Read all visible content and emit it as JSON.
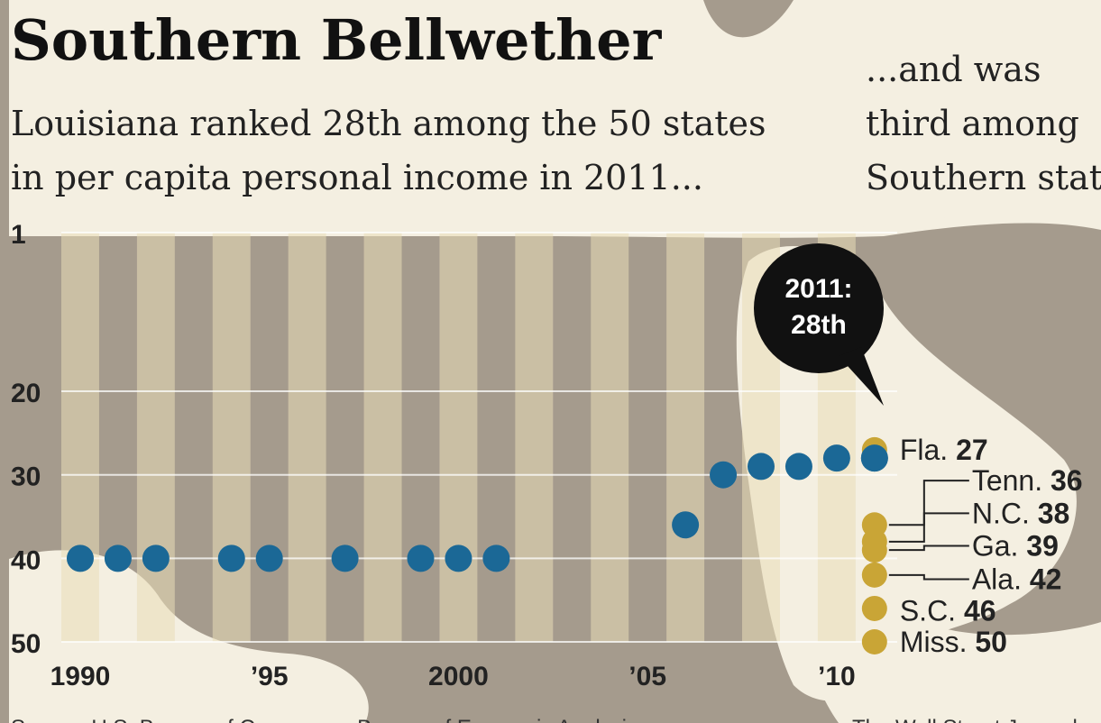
{
  "headline": "Southern Bellwether",
  "subhead_left": [
    "Louisiana ranked 28th among the 50 states",
    "in per capita personal income in 2011..."
  ],
  "subhead_right": [
    "...and was",
    "third among",
    "Southern state"
  ],
  "callout": [
    "2011:",
    "28th"
  ],
  "source_fragments": [
    "Source: U.S. Bureau of Commerce; Bureau of Economic Analysis",
    "The Wall Street Journal"
  ],
  "colors": {
    "paper": "#f4efe1",
    "stripe": "#e9dcb8",
    "louisiana": "#1b6896",
    "southern": "#c9a536",
    "callout": "#111111",
    "overlay": "#a59b8d"
  },
  "chart_data": {
    "type": "scatter",
    "title": "",
    "xlabel": "",
    "ylabel": "",
    "xlim": [
      1989.5,
      2011.6
    ],
    "ylim": [
      1,
      50
    ],
    "y_inverted": true,
    "grid": true,
    "x_ticks": [
      {
        "value": 1990,
        "label": "1990"
      },
      {
        "value": 1995,
        "label": "’95"
      },
      {
        "value": 2000,
        "label": "2000"
      },
      {
        "value": 2005,
        "label": "’05"
      },
      {
        "value": 2010,
        "label": "’10"
      }
    ],
    "y_ticks": [
      {
        "value": 1,
        "label": "1"
      },
      {
        "value": 20,
        "label": "20"
      },
      {
        "value": 30,
        "label": "30"
      },
      {
        "value": 40,
        "label": "40"
      },
      {
        "value": 50,
        "label": "50"
      }
    ],
    "series": [
      {
        "points": [
          {
            "x": 1990,
            "y": 40
          },
          {
            "x": 1991,
            "y": 40
          },
          {
            "x": 1992,
            "y": 40
          },
          {
            "x": 1994,
            "y": 40
          },
          {
            "x": 1995,
            "y": 40
          },
          {
            "x": 1997,
            "y": 40
          },
          {
            "x": 1999,
            "y": 40
          },
          {
            "x": 2000,
            "y": 40
          },
          {
            "x": 2001,
            "y": 40
          },
          {
            "x": 2006,
            "y": 36
          },
          {
            "x": 2007,
            "y": 30
          },
          {
            "x": 2008,
            "y": 29
          },
          {
            "x": 2009,
            "y": 29
          },
          {
            "x": 2010,
            "y": 28
          },
          {
            "x": 2011,
            "y": 28
          }
        ]
      },
      {
        "points": [
          {
            "x": 2011,
            "y": 27,
            "label": "Fla.",
            "value": "27"
          },
          {
            "x": 2011,
            "y": 36,
            "label": "Tenn.",
            "value": "36"
          },
          {
            "x": 2011,
            "y": 38,
            "label": "N.C.",
            "value": "38"
          },
          {
            "x": 2011,
            "y": 39,
            "label": "Ga.",
            "value": "39"
          },
          {
            "x": 2011,
            "y": 42,
            "label": "Ala.",
            "value": "42"
          },
          {
            "x": 2011,
            "y": 46,
            "label": "S.C.",
            "value": "46"
          },
          {
            "x": 2011,
            "y": 50,
            "label": "Miss.",
            "value": "50"
          }
        ]
      }
    ]
  }
}
